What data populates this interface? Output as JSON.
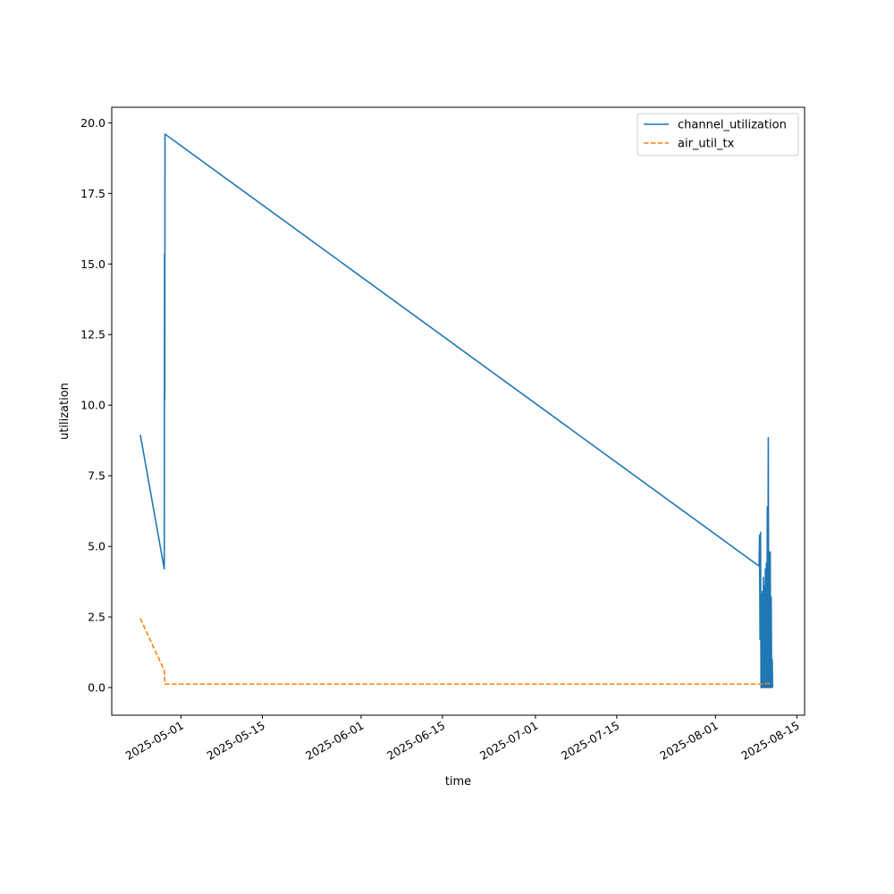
{
  "chart_data": {
    "type": "line",
    "title": "",
    "xlabel": "time",
    "ylabel": "utilization",
    "xlim": [
      "2025-04-19T02:00",
      "2025-08-16T08:00"
    ],
    "ylim": [
      -0.98,
      20.55
    ],
    "grid": false,
    "legend_position": "top-right",
    "x_ticks": [
      {
        "value": "2025-05-01",
        "label": "2025-05-01"
      },
      {
        "value": "2025-05-15",
        "label": "2025-05-15"
      },
      {
        "value": "2025-06-01",
        "label": "2025-06-01"
      },
      {
        "value": "2025-06-15",
        "label": "2025-06-15"
      },
      {
        "value": "2025-07-01",
        "label": "2025-07-01"
      },
      {
        "value": "2025-07-15",
        "label": "2025-07-15"
      },
      {
        "value": "2025-08-01",
        "label": "2025-08-01"
      },
      {
        "value": "2025-08-15",
        "label": "2025-08-15"
      }
    ],
    "y_ticks": [
      {
        "value": 0.0,
        "label": "0.0"
      },
      {
        "value": 2.5,
        "label": "2.5"
      },
      {
        "value": 5.0,
        "label": "5.0"
      },
      {
        "value": 7.5,
        "label": "7.5"
      },
      {
        "value": 10.0,
        "label": "10.0"
      },
      {
        "value": 12.5,
        "label": "12.5"
      },
      {
        "value": 15.0,
        "label": "15.0"
      },
      {
        "value": 17.5,
        "label": "17.5"
      },
      {
        "value": 20.0,
        "label": "20.0"
      }
    ],
    "series": [
      {
        "name": "channel_utilization",
        "color": "#1f77b4",
        "dash": "solid",
        "points": [
          [
            "2025-04-24T00:00",
            8.95
          ],
          [
            "2025-04-28T03:00",
            4.2
          ],
          [
            "2025-04-28T04:00",
            15.35
          ],
          [
            "2025-04-28T05:00",
            10.2
          ],
          [
            "2025-04-28T06:00",
            19.6
          ],
          [
            "2025-08-08T12:00",
            4.3
          ],
          [
            "2025-08-08T14:00",
            5.4
          ],
          [
            "2025-08-08T16:00",
            1.7
          ],
          [
            "2025-08-08T18:00",
            5.5
          ],
          [
            "2025-08-08T20:00",
            0.0
          ],
          [
            "2025-08-08T22:00",
            3.3
          ],
          [
            "2025-08-09T00:00",
            0.0
          ],
          [
            "2025-08-09T02:00",
            3.4
          ],
          [
            "2025-08-09T04:00",
            0.0
          ],
          [
            "2025-08-09T06:00",
            3.9
          ],
          [
            "2025-08-09T08:00",
            0.0
          ],
          [
            "2025-08-09T10:00",
            3.6
          ],
          [
            "2025-08-09T12:00",
            0.0
          ],
          [
            "2025-08-09T14:00",
            4.2
          ],
          [
            "2025-08-09T16:00",
            0.0
          ],
          [
            "2025-08-09T18:00",
            4.4
          ],
          [
            "2025-08-09T20:00",
            0.0
          ],
          [
            "2025-08-09T22:00",
            6.4
          ],
          [
            "2025-08-10T00:00",
            0.0
          ],
          [
            "2025-08-10T02:00",
            8.85
          ],
          [
            "2025-08-10T04:00",
            0.0
          ],
          [
            "2025-08-10T06:00",
            4.8
          ],
          [
            "2025-08-10T08:00",
            0.0
          ],
          [
            "2025-08-10T10:00",
            4.8
          ],
          [
            "2025-08-10T12:00",
            0.0
          ],
          [
            "2025-08-10T14:00",
            3.2
          ],
          [
            "2025-08-10T16:00",
            0.0
          ],
          [
            "2025-08-10T18:00",
            1.0
          ],
          [
            "2025-08-10T20:00",
            0.0
          ]
        ]
      },
      {
        "name": "air_util_tx",
        "color": "#ff7f0e",
        "dash": "dashed",
        "points": [
          [
            "2025-04-24T00:00",
            2.45
          ],
          [
            "2025-04-28T03:00",
            0.6
          ],
          [
            "2025-04-28T06:00",
            0.12
          ],
          [
            "2025-08-08T12:00",
            0.12
          ],
          [
            "2025-08-09T12:00",
            0.14
          ],
          [
            "2025-08-10T20:00",
            0.15
          ]
        ]
      }
    ]
  }
}
